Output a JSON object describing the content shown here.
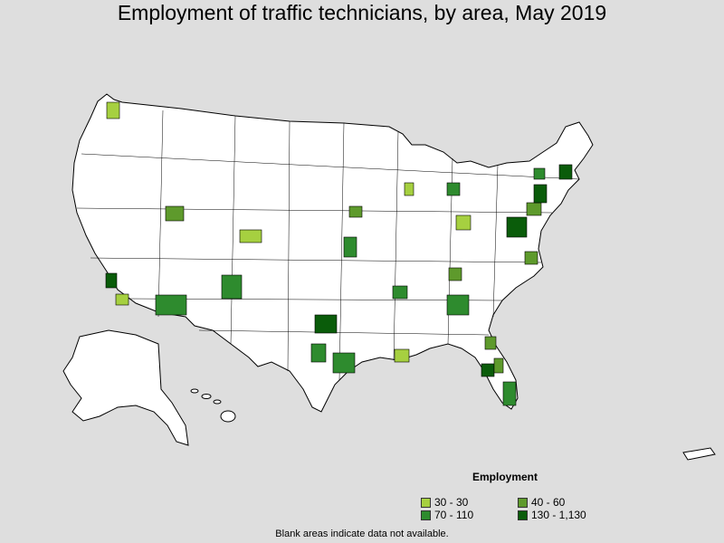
{
  "title": "Employment of traffic technicians, by area, May 2019",
  "legend": {
    "title": "Employment",
    "items": [
      {
        "label": "30 - 30",
        "color": "#a6d040"
      },
      {
        "label": "40 - 60",
        "color": "#5e9a2c"
      },
      {
        "label": "70 - 110",
        "color": "#2e8b2e"
      },
      {
        "label": "130 - 1,130",
        "color": "#0a5c0a"
      }
    ]
  },
  "note": "Blank areas indicate data not available.",
  "colors": {
    "background": "#dedede",
    "land": "#ffffff",
    "border": "#000000"
  }
}
